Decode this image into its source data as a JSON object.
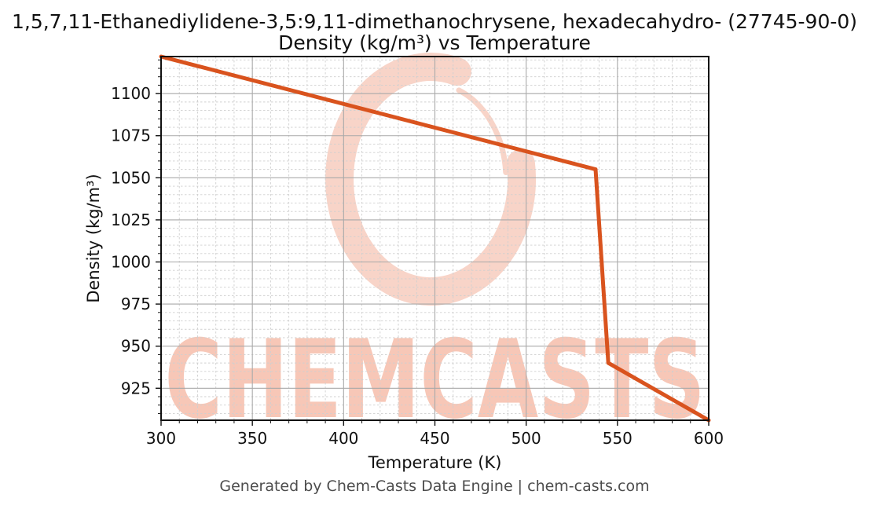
{
  "title": {
    "line1": "1,5,7,11-Ethanediylidene-3,5:9,11-dimethanochrysene, hexadecahydro- (27745-90-0)",
    "line2": "Density (kg/m³) vs Temperature"
  },
  "footer": {
    "text": "Generated by Chem-Casts Data Engine | chem-casts.com"
  },
  "watermark": {
    "text": "CHEMCASTS",
    "logo": "chemcasts-circle-swoosh-logo"
  },
  "colors": {
    "line": "#d9531e",
    "grid_major": "#a9a9a9",
    "grid_minor": "#cfcfcf",
    "spine": "#111111",
    "tick_label": "#111111",
    "title_text": "#111111",
    "footer_text": "#4d4d4d",
    "watermark_ring": "#f8d4c8",
    "watermark_text": "#f7c7b7"
  },
  "chart_data": {
    "type": "line",
    "title": "1,5,7,11-Ethanediylidene-3,5:9,11-dimethanochrysene, hexadecahydro- (27745-90-0) — Density (kg/m³) vs Temperature",
    "xlabel": "Temperature (K)",
    "ylabel": "Density (kg/m³)",
    "xlim": [
      300,
      600
    ],
    "ylim": [
      906,
      1122
    ],
    "xticks": [
      300,
      350,
      400,
      450,
      500,
      550,
      600
    ],
    "yticks": [
      925,
      950,
      975,
      1000,
      1025,
      1050,
      1075,
      1100
    ],
    "x_minor_step": 10,
    "y_minor_step": 5,
    "grid": true,
    "legend": "none",
    "series": [
      {
        "name": "Density",
        "x": [
          300,
          538,
          545,
          600
        ],
        "y": [
          1122,
          1055,
          940,
          906
        ]
      }
    ]
  }
}
